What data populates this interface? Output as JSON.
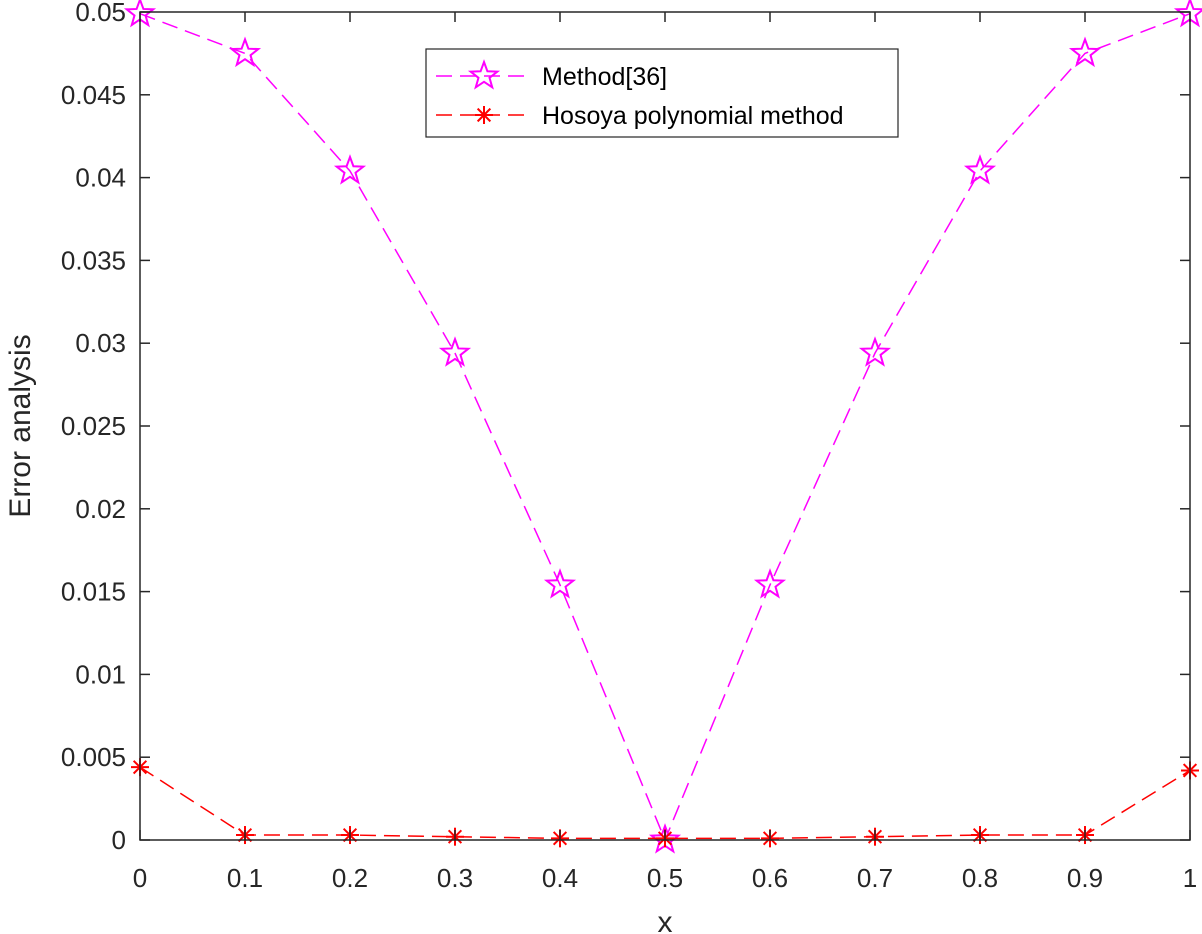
{
  "chart_data": {
    "type": "line",
    "title": "",
    "xlabel": "x",
    "ylabel": "Error analysis",
    "xlim": [
      0,
      1
    ],
    "ylim": [
      0,
      0.05
    ],
    "xticks": [
      0,
      0.1,
      0.2,
      0.3,
      0.4,
      0.5,
      0.6,
      0.7,
      0.8,
      0.9,
      1
    ],
    "xtick_labels": [
      "0",
      "0.1",
      "0.2",
      "0.3",
      "0.4",
      "0.5",
      "0.6",
      "0.7",
      "0.8",
      "0.9",
      "1"
    ],
    "yticks": [
      0,
      0.005,
      0.01,
      0.015,
      0.02,
      0.025,
      0.03,
      0.035,
      0.04,
      0.045,
      0.05
    ],
    "ytick_labels": [
      "0",
      "0.005",
      "0.01",
      "0.015",
      "0.02",
      "0.025",
      "0.03",
      "0.035",
      "0.04",
      "0.045",
      "0.05"
    ],
    "grid": false,
    "legend_position": "top-center",
    "x": [
      0,
      0.1,
      0.2,
      0.3,
      0.4,
      0.5,
      0.6,
      0.7,
      0.8,
      0.9,
      1
    ],
    "series": [
      {
        "name": "Method[36]",
        "color": "#ff00ff",
        "marker": "pentagram",
        "linestyle": "dashed",
        "values": [
          0.0499,
          0.0475,
          0.0404,
          0.0294,
          0.0154,
          0.0,
          0.0154,
          0.0294,
          0.0404,
          0.0475,
          0.0499
        ]
      },
      {
        "name": "Hosoya polynomial method",
        "color": "#ff0000",
        "marker": "asterisk",
        "linestyle": "dashed",
        "values": [
          0.0044,
          0.0003,
          0.0003,
          0.0002,
          0.0001,
          0.0001,
          0.0001,
          0.0002,
          0.0003,
          0.0003,
          0.0042
        ]
      }
    ]
  }
}
